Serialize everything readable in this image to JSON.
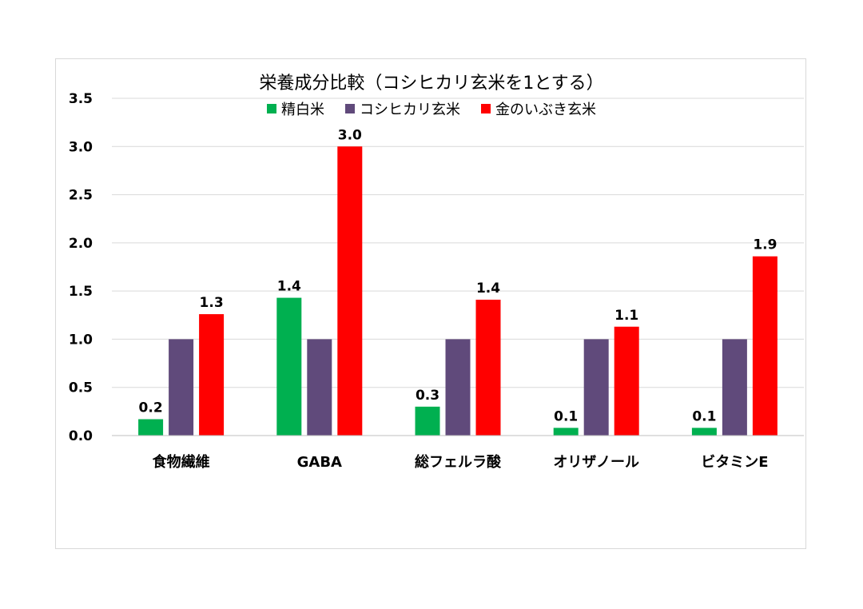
{
  "chart_data": {
    "type": "bar",
    "title": "栄養成分比較（コシヒカリ玄米を1とする）",
    "categories": [
      "食物繊維",
      "GABA",
      "総フェルラ酸",
      "オリザノール",
      "ビタミンE"
    ],
    "series": [
      {
        "name": "精白米",
        "color": "#00b050",
        "values": [
          0.17,
          1.43,
          0.3,
          0.08,
          0.08
        ],
        "labels": [
          "0.2",
          "1.4",
          "0.3",
          "0.1",
          "0.1"
        ]
      },
      {
        "name": "コシヒカリ玄米",
        "color": "#604a7b",
        "values": [
          1.0,
          1.0,
          1.0,
          1.0,
          1.0
        ],
        "labels": [
          "",
          "",
          "",
          "",
          ""
        ]
      },
      {
        "name": "金のいぶき玄米",
        "color": "#ff0000",
        "values": [
          1.26,
          3.0,
          1.41,
          1.13,
          1.86
        ],
        "labels": [
          "1.3",
          "3.0",
          "1.4",
          "1.1",
          "1.9"
        ]
      }
    ],
    "yticks": [
      "0.0",
      "0.5",
      "1.0",
      "1.5",
      "2.0",
      "2.5",
      "3.0",
      "3.5"
    ],
    "ylim": [
      0,
      3.5
    ],
    "grid": true,
    "legend": "top"
  }
}
